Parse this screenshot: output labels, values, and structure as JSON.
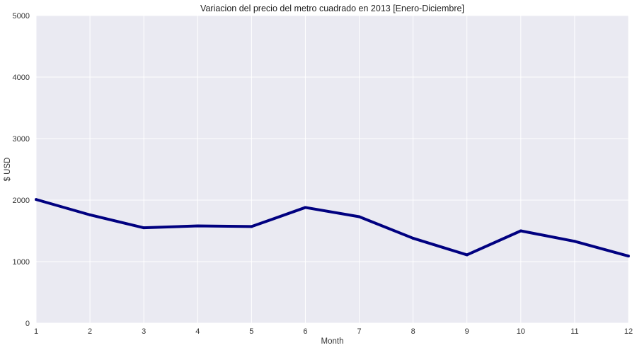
{
  "chart_data": {
    "type": "line",
    "title": "Variacion del precio del metro cuadrado en 2013 [Enero-Diciembre]",
    "xlabel": "Month",
    "ylabel": "$ USD",
    "x": [
      1,
      2,
      3,
      4,
      5,
      6,
      7,
      8,
      9,
      10,
      11,
      12
    ],
    "series": [
      {
        "values": [
          2010,
          1760,
          1550,
          1580,
          1570,
          1880,
          1730,
          1380,
          1110,
          1500,
          1330,
          1090
        ],
        "color": "#000080"
      }
    ],
    "xlim": [
      1,
      12
    ],
    "ylim": [
      0,
      5000
    ],
    "xticks": [
      "1",
      "2",
      "3",
      "4",
      "5",
      "6",
      "7",
      "8",
      "9",
      "10",
      "11",
      "12"
    ],
    "yticks": [
      "0",
      "1000",
      "2000",
      "3000",
      "4000",
      "5000"
    ],
    "grid": true,
    "background_color": "#EAEAF2",
    "grid_color": "#FFFFFF"
  }
}
